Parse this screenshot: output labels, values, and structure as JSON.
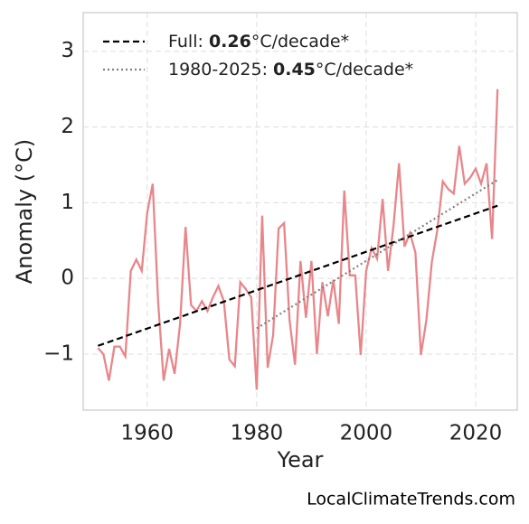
{
  "chart_data": {
    "type": "line",
    "xlabel": "Year",
    "ylabel": "Anomaly (°C)",
    "watermark": "LocalClimateTrends.com",
    "xlim": [
      1948.3,
      2027.6
    ],
    "ylim": [
      -1.74,
      3.51
    ],
    "xticks": [
      1960,
      1980,
      2000,
      2020
    ],
    "yticks": [
      {
        "value": -1,
        "label": "−1"
      },
      0,
      1,
      2,
      3
    ],
    "grid": true,
    "legend": "upper left",
    "series": [
      {
        "color": "#e8868a",
        "style": "solid",
        "x": [
          1951,
          1952,
          1953,
          1954,
          1955,
          1956,
          1957,
          1958,
          1959,
          1960,
          1961,
          1962,
          1963,
          1964,
          1965,
          1966,
          1967,
          1968,
          1969,
          1970,
          1971,
          1972,
          1973,
          1974,
          1975,
          1976,
          1977,
          1978,
          1979,
          1980,
          1981,
          1982,
          1983,
          1984,
          1985,
          1986,
          1987,
          1988,
          1989,
          1990,
          1991,
          1992,
          1993,
          1994,
          1995,
          1996,
          1997,
          1998,
          1999,
          2000,
          2001,
          2002,
          2003,
          2004,
          2005,
          2006,
          2007,
          2008,
          2009,
          2010,
          2011,
          2012,
          2013,
          2014,
          2015,
          2016,
          2017,
          2018,
          2019,
          2020,
          2021,
          2022,
          2023,
          2024
        ],
        "values": [
          -0.92,
          -1.0,
          -1.35,
          -0.9,
          -0.9,
          -1.03,
          0.1,
          0.25,
          0.1,
          0.87,
          1.25,
          -0.32,
          -1.35,
          -0.93,
          -1.26,
          -0.6,
          0.68,
          -0.35,
          -0.43,
          -0.3,
          -0.43,
          -0.25,
          -0.1,
          -0.3,
          -1.07,
          -1.16,
          -0.05,
          -0.14,
          -0.25,
          -1.47,
          0.83,
          -1.18,
          -0.75,
          0.66,
          0.73,
          -0.55,
          -1.14,
          0.23,
          -0.52,
          0.23,
          -1.0,
          -0.05,
          -0.5,
          -0.02,
          -0.6,
          1.16,
          0.04,
          0.04,
          -1.01,
          0.1,
          0.4,
          0.26,
          1.05,
          0.1,
          0.7,
          1.52,
          0.42,
          0.6,
          0.34,
          -1.01,
          -0.55,
          0.22,
          0.64,
          1.28,
          1.18,
          1.12,
          1.75,
          1.25,
          1.33,
          1.45,
          1.25,
          1.52,
          0.52,
          2.5
        ]
      },
      {
        "name": [
          "Full: ",
          "0.26",
          "°C/decade*"
        ],
        "color": "#000000",
        "style": "dashed",
        "x": [
          1951,
          2024
        ],
        "values": [
          -0.89,
          0.96
        ]
      },
      {
        "name": [
          "1980-2025: ",
          "0.45",
          "°C/decade*"
        ],
        "color": "#808080",
        "style": "dotted",
        "x": [
          1980,
          2024
        ],
        "values": [
          -0.66,
          1.3
        ]
      }
    ]
  }
}
